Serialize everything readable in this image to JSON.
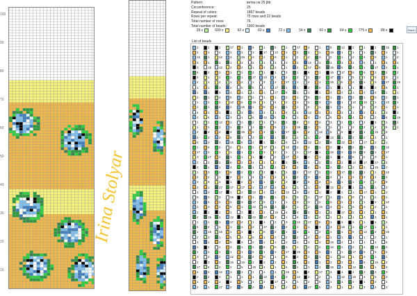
{
  "ruler": {
    "labels": [
      "100",
      "90",
      "80",
      "70",
      "60",
      "50",
      "40",
      "30",
      "20",
      "10"
    ]
  },
  "watermark": {
    "text": "Irina Stolyar",
    "color": "#f4c430"
  },
  "info": {
    "rows": [
      {
        "key": "Pattern:",
        "value": "ветка на 25.jbb"
      },
      {
        "key": "Circumference:",
        "value": "25"
      },
      {
        "key": "Repeat of colors:",
        "value": "1897 beads"
      },
      {
        "key": "Rows per repeat:",
        "value": "75 rows and 22 beads"
      },
      {
        "key": "Total number of rows:",
        "value": "76"
      },
      {
        "key": "Total number of beads:",
        "value": "1900 beads"
      }
    ]
  },
  "palette": [
    {
      "label": "28 x",
      "color": "#b9f0a0"
    },
    {
      "label": "609 x",
      "color": "#f6f27a"
    },
    {
      "label": "92 x",
      "color": "#d8f3fb"
    },
    {
      "label": "60 x",
      "color": "#3f7fc0"
    },
    {
      "label": "72 x",
      "color": "#7fc0f0"
    },
    {
      "label": "34 x",
      "color": "#3a8050"
    },
    {
      "label": "60 x",
      "color": "#2a9a3a"
    },
    {
      "label": "64 x",
      "color": "#2fcf3f"
    },
    {
      "label": "775 x",
      "color": "#f0b84a"
    },
    {
      "label": "88 x",
      "color": "#000000"
    }
  ],
  "save_label": "Save I",
  "list_title": "List of beads",
  "colors": {
    "yellow": "#f6f27a",
    "orange": "#f0b84a",
    "white": "#ffffff",
    "black": "#000000",
    "lightblue": "#7fc0f0",
    "blue": "#3f7fc0",
    "paleblue": "#d8f3fb",
    "green": "#2a9a3a",
    "lightgreen": "#2fcf3f",
    "palegreen": "#b9f0a0",
    "darkgreen": "#3a8050"
  }
}
